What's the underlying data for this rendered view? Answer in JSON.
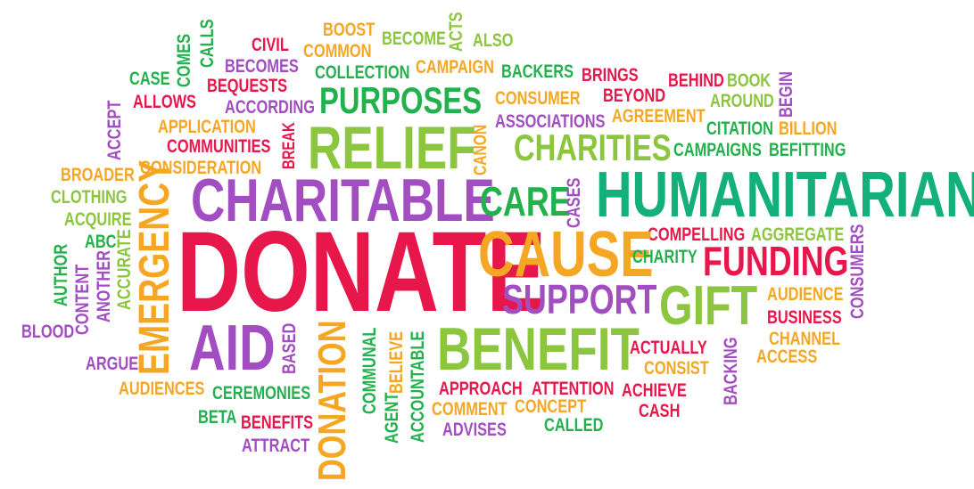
{
  "colors": {
    "red": "#E8174B",
    "green": "#23B14D",
    "purple": "#A24EC2",
    "orange": "#F5A623",
    "lime": "#8CC63E",
    "teal": "#13B07A"
  },
  "words": {
    "boost": "BOOST",
    "common": "COMMON",
    "become": "BECOME",
    "acts": "ACTS",
    "also": "ALSO",
    "civil": "CIVIL",
    "becomes": "BECOMES",
    "comes": "COMES",
    "calls": "CALLS",
    "case": "CASE",
    "bequests": "BEQUESTS",
    "collection": "COLLECTION",
    "campaign": "CAMPAIGN",
    "backers": "BACKERS",
    "brings": "BRINGS",
    "behind": "BEHIND",
    "book": "BOOK",
    "allows": "ALLOWS",
    "according": "ACCORDING",
    "purposes": "PURPOSES",
    "consumer": "CONSUMER",
    "beyond": "BEYOND",
    "around": "AROUND",
    "begin": "BEGIN",
    "accept": "ACCEPT",
    "application": "APPLICATION",
    "associations": "ASSOCIATIONS",
    "agreement": "AGREEMENT",
    "citation": "CITATION",
    "billion": "BILLION",
    "break": "BREAK",
    "communities": "COMMUNITIES",
    "relief": "RELIEF",
    "canon": "CANON",
    "charities": "CHARITIES",
    "campaigns": "CAMPAIGNS",
    "befitting": "BEFITTING",
    "consideration": "CONSIDERATION",
    "broader": "BROADER",
    "clothing": "CLOTHING",
    "charitable": "CHARITABLE",
    "care": "CARE",
    "cases": "CASES",
    "humanitarian": "HUMANITARIAN",
    "acquire": "ACQUIRE",
    "emergency": "EMERGENCY",
    "abc": "ABC",
    "compelling": "COMPELLING",
    "aggregate": "AGGREGATE",
    "accurate": "ACCURATE",
    "author": "AUTHOR",
    "donate": "DONATE",
    "cause": "CAUSE",
    "charity": "CHARITY",
    "funding": "FUNDING",
    "consumers": "CONSUMERS",
    "another": "ANOTHER",
    "content": "CONTENT",
    "support": "SUPPORT",
    "gift": "GIFT",
    "audience": "AUDIENCE",
    "blood": "BLOOD",
    "business": "BUSINESS",
    "aid": "AID",
    "based": "BASED",
    "donation": "DONATION",
    "communal": "COMMUNAL",
    "believe": "BELIEVE",
    "benefit": "BENEFIT",
    "channel": "CHANNEL",
    "actually": "ACTUALLY",
    "access": "ACCESS",
    "argue": "ARGUE",
    "consist": "CONSIST",
    "backing": "BACKING",
    "agent": "AGENT",
    "accountable": "ACCOUNTABLE",
    "audiences": "AUDIENCES",
    "ceremonies": "CEREMONIES",
    "approach": "APPROACH",
    "attention": "ATTENTION",
    "achieve": "ACHIEVE",
    "cash": "CASH",
    "beta": "BETA",
    "comment": "COMMENT",
    "concept": "CONCEPT",
    "benefits": "BENEFITS",
    "advises": "ADVISES",
    "called": "CALLED",
    "attract": "ATTRACT"
  }
}
